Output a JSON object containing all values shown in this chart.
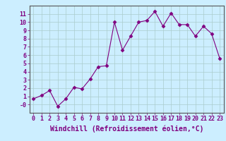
{
  "x": [
    0,
    1,
    2,
    3,
    4,
    5,
    6,
    7,
    8,
    9,
    10,
    11,
    12,
    13,
    14,
    15,
    16,
    17,
    18,
    19,
    20,
    21,
    22,
    23
  ],
  "y": [
    0.7,
    1.1,
    1.7,
    -0.2,
    0.7,
    2.1,
    1.9,
    3.1,
    4.6,
    4.7,
    10.0,
    6.6,
    8.3,
    10.0,
    10.2,
    11.3,
    9.5,
    11.1,
    9.7,
    9.7,
    8.3,
    9.5,
    8.6,
    5.6
  ],
  "line_color": "#800080",
  "marker": "D",
  "marker_size": 2.5,
  "bg_color": "#cceeff",
  "grid_color": "#aacccc",
  "xlabel": "Windchill (Refroidissement éolien,°C)",
  "xlabel_color": "#800080",
  "xlim": [
    -0.5,
    23.5
  ],
  "ylim": [
    -1.0,
    12.0
  ],
  "yticks": [
    0,
    1,
    2,
    3,
    4,
    5,
    6,
    7,
    8,
    9,
    10,
    11
  ],
  "ytick_labels": [
    "-0",
    "1",
    "2",
    "3",
    "4",
    "5",
    "6",
    "7",
    "8",
    "9",
    "10",
    "11"
  ],
  "xticks": [
    0,
    1,
    2,
    3,
    4,
    5,
    6,
    7,
    8,
    9,
    10,
    11,
    12,
    13,
    14,
    15,
    16,
    17,
    18,
    19,
    20,
    21,
    22,
    23
  ],
  "tick_fontsize": 6,
  "xlabel_fontsize": 7,
  "line_width": 0.8
}
